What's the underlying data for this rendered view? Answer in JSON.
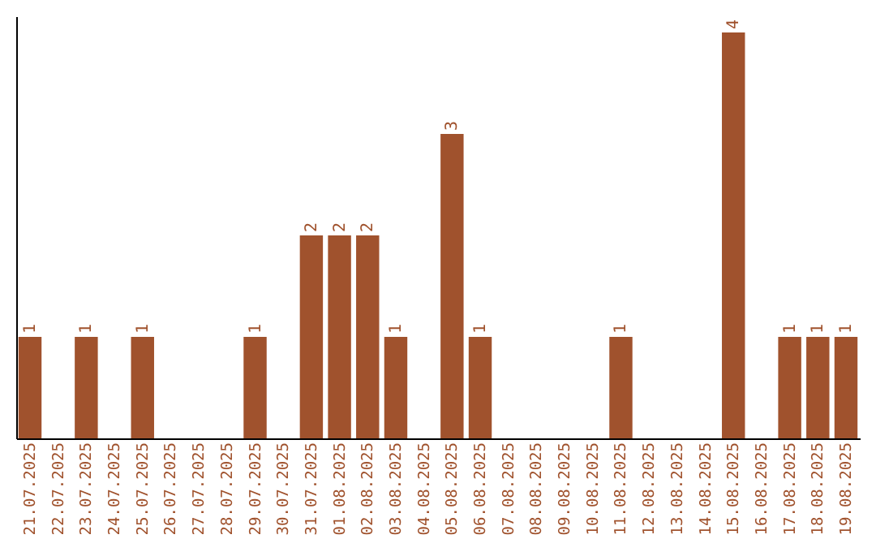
{
  "chart_data": {
    "type": "bar",
    "categories": [
      "21.07.2025",
      "22.07.2025",
      "23.07.2025",
      "24.07.2025",
      "25.07.2025",
      "26.07.2025",
      "27.07.2025",
      "28.07.2025",
      "29.07.2025",
      "30.07.2025",
      "31.07.2025",
      "01.08.2025",
      "02.08.2025",
      "03.08.2025",
      "04.08.2025",
      "05.08.2025",
      "06.08.2025",
      "07.08.2025",
      "08.08.2025",
      "09.08.2025",
      "10.08.2025",
      "11.08.2025",
      "12.08.2025",
      "13.08.2025",
      "14.08.2025",
      "15.08.2025",
      "16.08.2025",
      "17.08.2025",
      "18.08.2025",
      "19.08.2025"
    ],
    "values": [
      1,
      0,
      1,
      0,
      1,
      0,
      0,
      0,
      1,
      0,
      2,
      2,
      2,
      1,
      0,
      3,
      1,
      0,
      0,
      0,
      0,
      1,
      0,
      0,
      0,
      4,
      0,
      1,
      1,
      1
    ],
    "value_labels": [
      "1",
      null,
      "1",
      null,
      "1",
      null,
      null,
      null,
      "1",
      null,
      "2",
      "2",
      "2",
      "1",
      null,
      "3",
      "1",
      null,
      null,
      null,
      null,
      "1",
      null,
      null,
      null,
      "4",
      null,
      "1",
      "1",
      "1"
    ],
    "color": "#a0522d",
    "tick_labels": "x",
    "grid": false
  }
}
